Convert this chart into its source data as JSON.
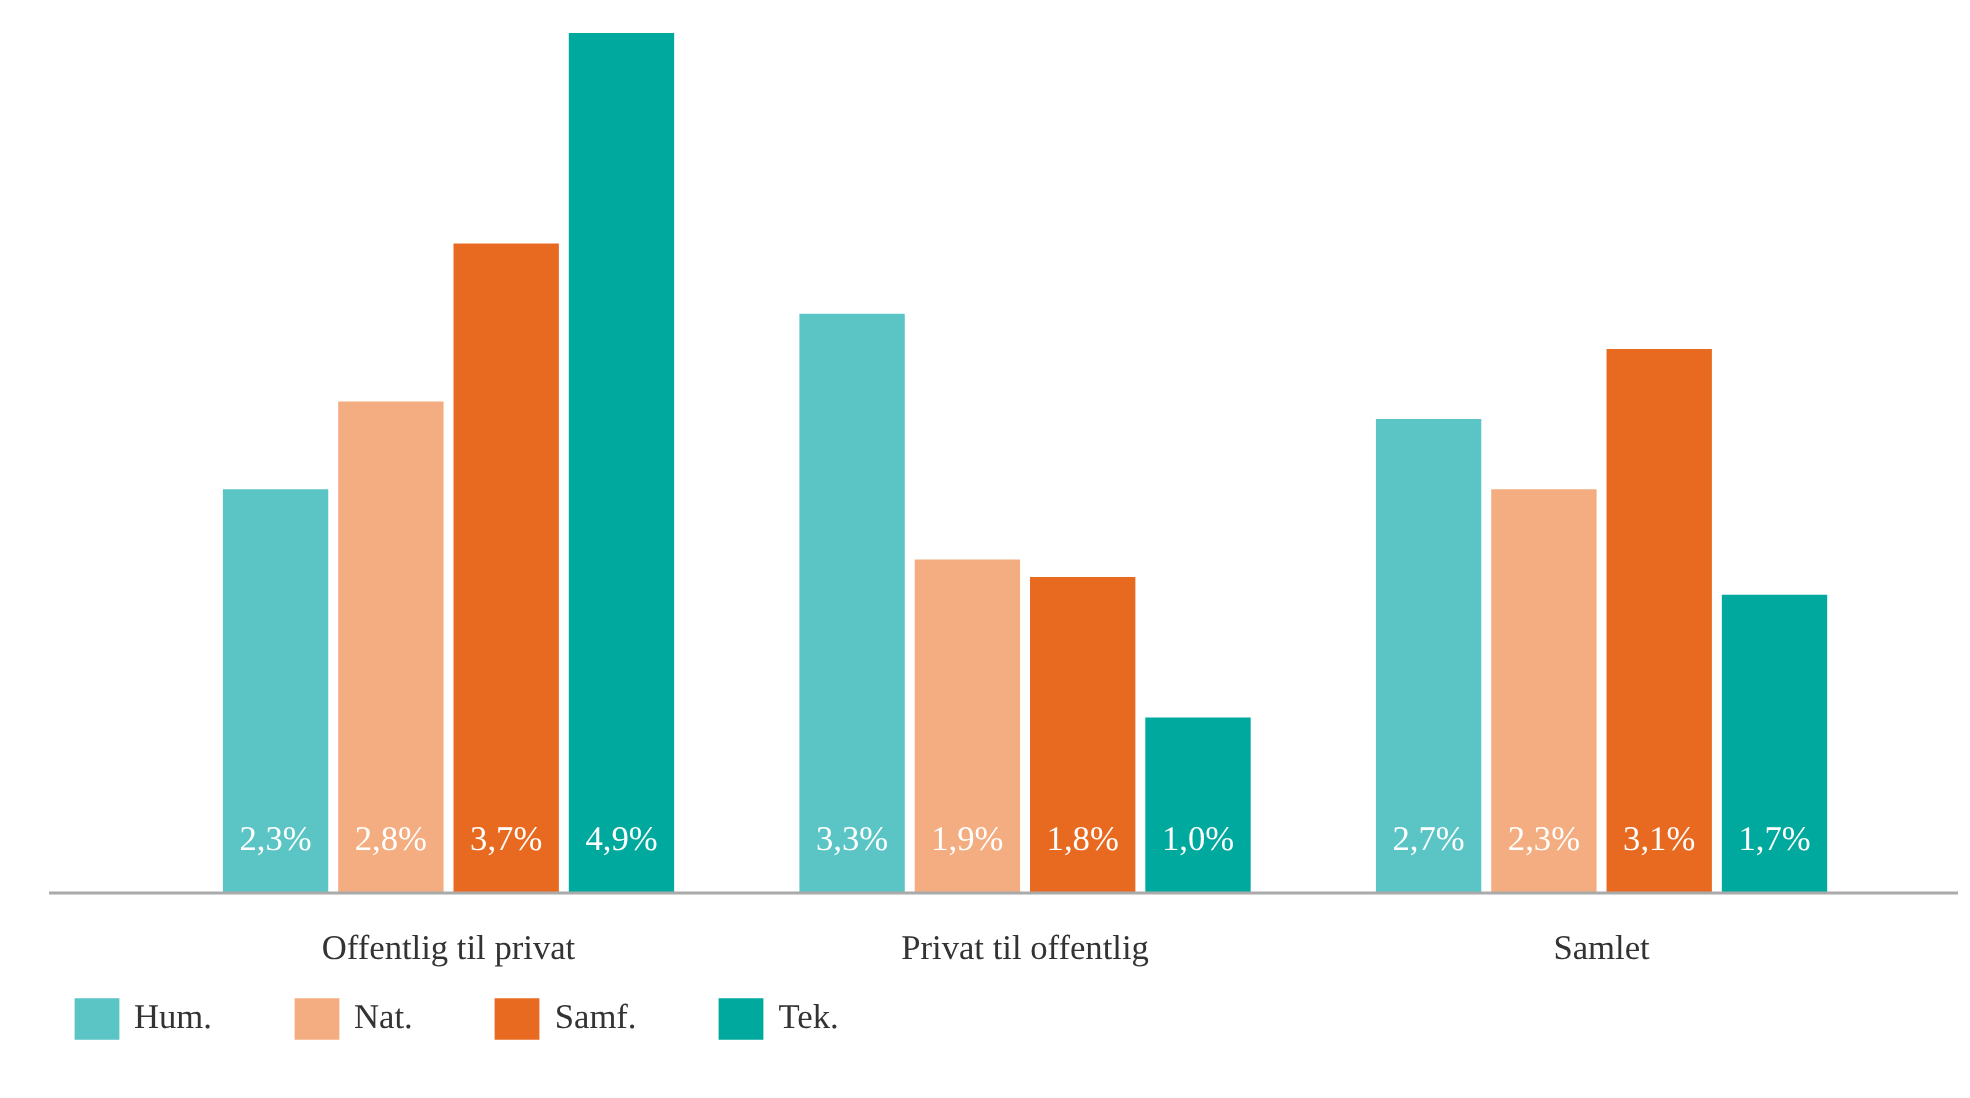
{
  "chart_data": {
    "type": "bar",
    "categories": [
      "Offentlig til privat",
      "Privat til offentlig",
      "Samlet"
    ],
    "series": [
      {
        "name": "Hum.",
        "color": "#5bc5c6",
        "values": [
          2.3,
          3.3,
          2.7
        ],
        "value_labels": [
          "2,3%",
          "3,3%",
          "2,7%"
        ]
      },
      {
        "name": "Nat.",
        "color": "#f4ad80",
        "values": [
          2.8,
          1.9,
          2.3
        ],
        "value_labels": [
          "2,8%",
          "1,9%",
          "2,3%"
        ]
      },
      {
        "name": "Samf.",
        "color": "#e86a20",
        "values": [
          3.7,
          1.8,
          3.1
        ],
        "value_labels": [
          "3,7%",
          "1,8%",
          "3,1%"
        ]
      },
      {
        "name": "Tek.",
        "color": "#00a99d",
        "values": [
          4.9,
          1.0,
          1.7
        ],
        "value_labels": [
          "4,9%",
          "1,0%",
          "1,7%"
        ]
      }
    ],
    "legend": "bottom left"
  }
}
